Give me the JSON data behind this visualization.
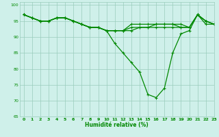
{
  "xlabel": "Humidité relative (%)",
  "xlim": [
    -0.5,
    23
  ],
  "ylim": [
    65,
    101
  ],
  "yticks": [
    65,
    70,
    75,
    80,
    85,
    90,
    95,
    100
  ],
  "xticks": [
    0,
    1,
    2,
    3,
    4,
    5,
    6,
    7,
    8,
    9,
    10,
    11,
    12,
    13,
    14,
    15,
    16,
    17,
    18,
    19,
    20,
    21,
    22,
    23
  ],
  "bg_color": "#cff0ea",
  "grid_color": "#99ccbb",
  "line_color": "#008800",
  "series": [
    [
      97,
      96,
      95,
      95,
      96,
      96,
      95,
      94,
      93,
      93,
      92,
      92,
      92,
      92,
      93,
      93,
      94,
      94,
      94,
      93,
      93,
      97,
      95,
      94
    ],
    [
      97,
      96,
      95,
      95,
      96,
      96,
      95,
      94,
      93,
      93,
      92,
      92,
      92,
      93,
      93,
      93,
      93,
      93,
      93,
      93,
      93,
      97,
      95,
      94
    ],
    [
      97,
      96,
      95,
      95,
      96,
      96,
      95,
      94,
      93,
      93,
      92,
      92,
      92,
      94,
      94,
      94,
      94,
      94,
      94,
      94,
      93,
      97,
      95,
      94
    ],
    [
      97,
      96,
      95,
      95,
      96,
      96,
      95,
      94,
      93,
      93,
      92,
      88,
      85,
      82,
      79,
      72,
      71,
      74,
      85,
      91,
      92,
      97,
      94,
      94
    ]
  ],
  "linewidth": 0.9,
  "markersize": 2.5
}
